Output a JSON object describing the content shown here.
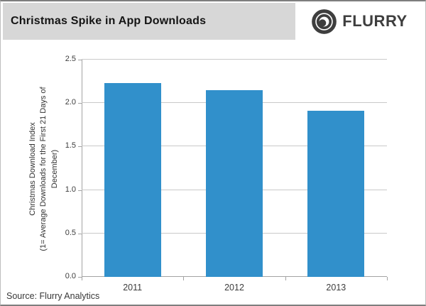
{
  "header": {
    "title": "Christmas Spike in App Downloads",
    "logo_text": "FLURRY"
  },
  "source_note": "Source: Flurry Analytics",
  "colors": {
    "bar": "#3190cb",
    "header_bg": "#d7d7d7",
    "gridline": "#c9c9c9",
    "axis": "#a3a3a3",
    "logo": "#3e3e3e"
  },
  "chart_data": {
    "type": "bar",
    "title": "Christmas Spike in App Downloads",
    "categories": [
      "2011",
      "2012",
      "2013"
    ],
    "values": [
      2.23,
      2.15,
      1.91
    ],
    "xlabel": "",
    "ylabel": "Christmas Download Index\n(1= Average Downloads for the First 21 Days of\nDecember)",
    "ylim": [
      0,
      2.5
    ],
    "yticks": [
      0.0,
      0.5,
      1.0,
      1.5,
      2.0,
      2.5
    ],
    "grid": true,
    "legend": false,
    "source": "Flurry Analytics"
  }
}
